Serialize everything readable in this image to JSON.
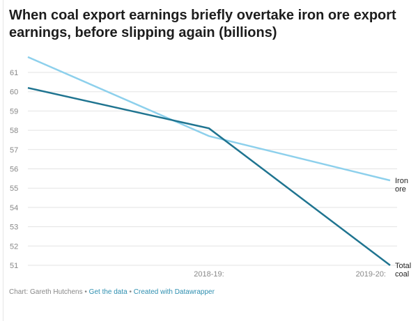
{
  "chart_data": {
    "type": "line",
    "title": "When coal export earnings briefly overtake iron ore export earnings, before slipping again (billions)",
    "categories": [
      "",
      "2018-19:",
      "2019-20:"
    ],
    "series": [
      {
        "name": "Iron ore",
        "label_lines": [
          "Iron",
          "ore"
        ],
        "values": [
          61.8,
          57.7,
          55.4
        ],
        "color": "#8dd0ec"
      },
      {
        "name": "Total coal",
        "label_lines": [
          "Total",
          "coal"
        ],
        "values": [
          60.2,
          58.1,
          51.0
        ],
        "color": "#1f7490"
      }
    ],
    "yticks": [
      51,
      52,
      53,
      54,
      55,
      56,
      57,
      58,
      59,
      60,
      61
    ],
    "ylim": [
      51,
      61
    ],
    "grid": true,
    "legend": "direct labels at line ends"
  },
  "footer": {
    "credit": "Chart: Gareth Hutchens",
    "sep": " • ",
    "get_data": "Get the data",
    "created": "Created with Datawrapper"
  }
}
